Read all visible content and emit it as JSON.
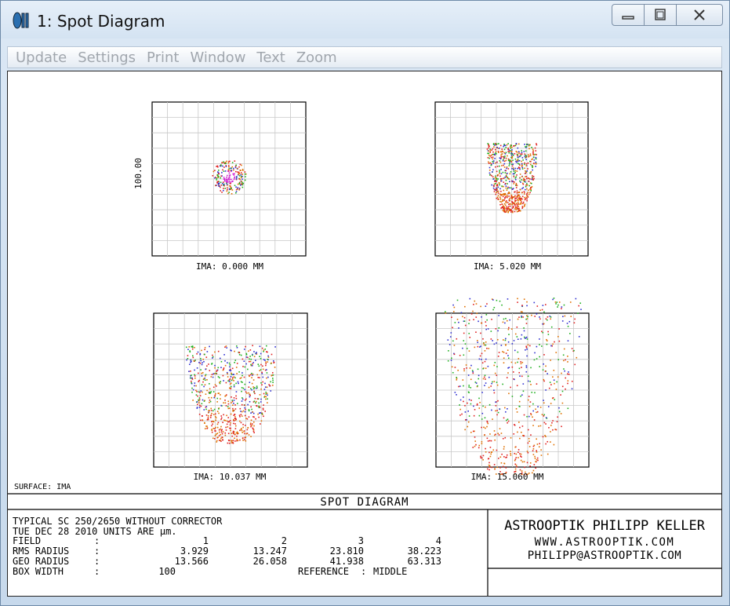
{
  "window": {
    "title": "1: Spot Diagram"
  },
  "menu": [
    "Update",
    "Settings",
    "Print",
    "Window",
    "Text",
    "Zoom"
  ],
  "plot": {
    "scale_label": "100.00",
    "surface_label": "SURFACE: IMA",
    "fields": [
      {
        "label": "IMA: 0.000 MM"
      },
      {
        "label": "IMA: 5.020 MM"
      },
      {
        "label": "IMA: 10.037 MM"
      },
      {
        "label": "IMA: 15.060 MM"
      }
    ],
    "colors": {
      "blue": "#3030d0",
      "green": "#20b020",
      "red": "#e02020",
      "orange": "#e07000",
      "magenta": "#d020d0"
    }
  },
  "footer": {
    "heading": "SPOT DIAGRAM",
    "info_lines": [
      "TYPICAL SC 250/2650 WITHOUT CORRECTOR",
      "TUE DEC 28 2010  UNITS ARE µm."
    ],
    "rows": [
      {
        "label": "FIELD",
        "sep": ":",
        "values": [
          "1",
          "2",
          "3",
          "4"
        ]
      },
      {
        "label": "RMS RADIUS",
        "sep": ":",
        "values": [
          "3.929",
          "13.247",
          "23.810",
          "38.223"
        ]
      },
      {
        "label": "GEO RADIUS",
        "sep": ":",
        "values": [
          "13.566",
          "26.058",
          "41.938",
          "63.313"
        ]
      }
    ],
    "box_width_label": "BOX WIDTH",
    "box_width_sep": ":",
    "box_width_value": "100",
    "reference_label": "REFERENCE",
    "reference_sep": ":",
    "reference_value": "MIDDLE",
    "company_name": "ASTROOPTIK PHILIPP KELLER",
    "company_url": "WWW.ASTROOPTIK.COM",
    "company_email": "PHILIPP@ASTROOPTIK.COM"
  }
}
